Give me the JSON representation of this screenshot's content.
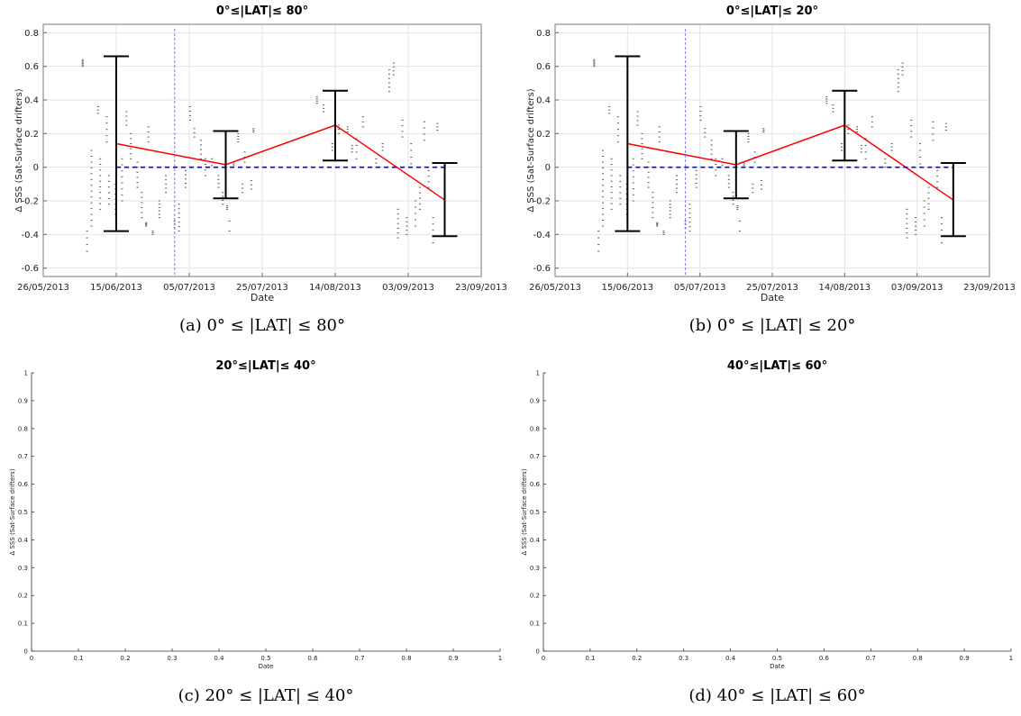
{
  "chart_data": [
    {
      "type": "line",
      "title": "0°≤|LAT|≤ 80°",
      "caption": "(a) 0° ≤ |LAT| ≤ 80°",
      "xlabel": "Date",
      "ylabel": "Δ SSS (Sat-Surface drifters)",
      "x_ticks": [
        "26/05/2013",
        "15/06/2013",
        "05/07/2013",
        "25/07/2013",
        "14/08/2013",
        "03/09/2013",
        "23/09/2013"
      ],
      "xlim": [
        "26/05/2013",
        "23/09/2013"
      ],
      "ylim": [
        -0.65,
        0.85
      ],
      "y_ticks": [
        -0.6,
        -0.4,
        -0.2,
        0,
        0.2,
        0.4,
        0.6,
        0.8
      ],
      "grid": true,
      "series": [
        {
          "style": "red solid line",
          "color": "#ff0000",
          "x": [
            "15/06/2013",
            "15/07/2013",
            "14/08/2013",
            "13/09/2013"
          ],
          "y": [
            0.14,
            0.015,
            0.25,
            -0.195
          ]
        },
        {
          "style": "blue dashed line",
          "color": "#0000ff",
          "x": [
            "15/06/2013",
            "13/09/2013"
          ],
          "y": [
            0,
            0
          ]
        },
        {
          "style": "black error bars",
          "color": "#000000",
          "x": [
            "15/06/2013",
            "15/07/2013",
            "14/08/2013",
            "13/09/2013"
          ],
          "low": [
            -0.38,
            -0.185,
            0.04,
            -0.41
          ],
          "high": [
            0.66,
            0.215,
            0.455,
            0.025
          ]
        },
        {
          "style": "vertical dashed reference line",
          "color": "#7b7bff",
          "x": [
            "01/07/2013"
          ]
        }
      ]
    },
    {
      "type": "line",
      "title": "0°≤|LAT|≤ 20°",
      "caption": "(b) 0° ≤ |LAT| ≤ 20°",
      "xlabel": "Date",
      "ylabel": "Δ SSS (Sat-Surface drifters)",
      "x_ticks": [
        "26/05/2013",
        "15/06/2013",
        "05/07/2013",
        "25/07/2013",
        "14/08/2013",
        "03/09/2013",
        "23/09/2013"
      ],
      "xlim": [
        "26/05/2013",
        "23/09/2013"
      ],
      "ylim": [
        -0.65,
        0.85
      ],
      "y_ticks": [
        -0.6,
        -0.4,
        -0.2,
        0,
        0.2,
        0.4,
        0.6,
        0.8
      ],
      "grid": true,
      "series": [
        {
          "style": "red solid line",
          "color": "#ff0000",
          "x": [
            "15/06/2013",
            "15/07/2013",
            "14/08/2013",
            "13/09/2013"
          ],
          "y": [
            0.14,
            0.015,
            0.25,
            -0.195
          ]
        },
        {
          "style": "blue dashed line",
          "color": "#0000ff",
          "x": [
            "15/06/2013",
            "13/09/2013"
          ],
          "y": [
            0,
            0
          ]
        },
        {
          "style": "black error bars",
          "color": "#000000",
          "x": [
            "15/06/2013",
            "15/07/2013",
            "14/08/2013",
            "13/09/2013"
          ],
          "low": [
            -0.38,
            -0.185,
            0.04,
            -0.41
          ],
          "high": [
            0.66,
            0.215,
            0.455,
            0.025
          ]
        },
        {
          "style": "vertical dashed reference line",
          "color": "#7b7bff",
          "x": [
            "01/07/2013"
          ]
        }
      ]
    },
    {
      "type": "line",
      "title": "20°≤|LAT|≤ 40°",
      "caption": "(c) 20° ≤ |LAT| ≤ 40°",
      "xlabel": "Date",
      "ylabel": "Δ SSS (Sat-Surface drifters)",
      "xlim": [
        0,
        1
      ],
      "ylim": [
        0,
        1
      ],
      "x_ticks": [
        "0",
        "0.1",
        "0.2",
        "0.3",
        "0.4",
        "0.5",
        "0.6",
        "0.7",
        "0.8",
        "0.9",
        "1"
      ],
      "y_ticks": [
        "0",
        "0.1",
        "0.2",
        "0.3",
        "0.4",
        "0.5",
        "0.6",
        "0.7",
        "0.8",
        "0.9",
        "1"
      ],
      "grid": false,
      "series": []
    },
    {
      "type": "line",
      "title": "40°≤|LAT|≤ 60°",
      "caption": "(d) 40° ≤ |LAT| ≤ 60°",
      "xlabel": "Date",
      "ylabel": "Δ SSS (Sat-Surface drifters)",
      "xlim": [
        0,
        1
      ],
      "ylim": [
        0,
        1
      ],
      "x_ticks": [
        "0",
        "0.1",
        "0.2",
        "0.3",
        "0.4",
        "0.5",
        "0.6",
        "0.7",
        "0.8",
        "0.9",
        "1"
      ],
      "y_ticks": [
        "0",
        "0.1",
        "0.2",
        "0.3",
        "0.4",
        "0.5",
        "0.6",
        "0.7",
        "0.8",
        "0.9",
        "1"
      ],
      "grid": false,
      "series": []
    }
  ]
}
